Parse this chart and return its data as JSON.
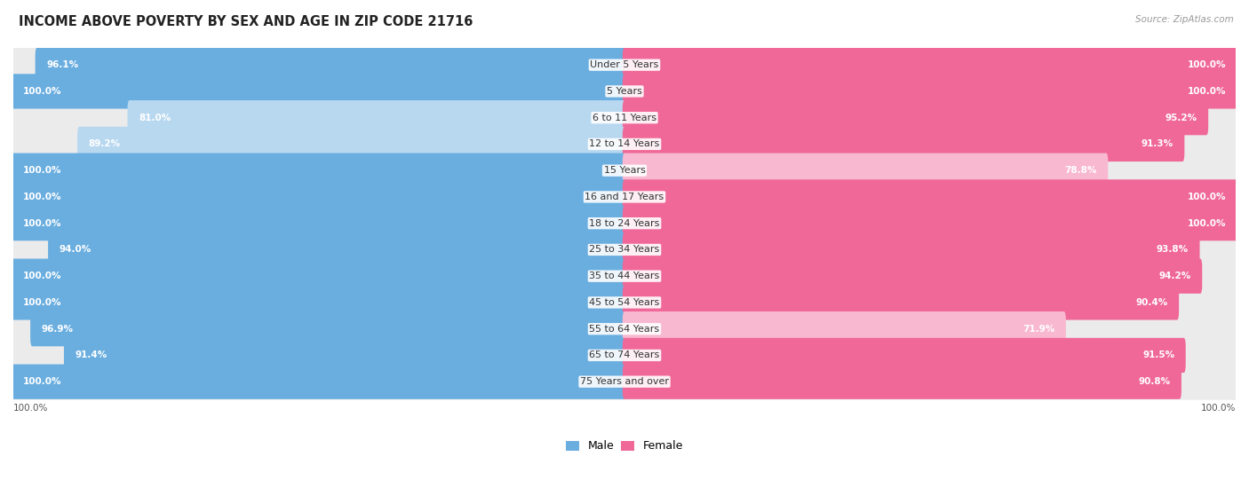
{
  "title": "INCOME ABOVE POVERTY BY SEX AND AGE IN ZIP CODE 21716",
  "source": "Source: ZipAtlas.com",
  "categories": [
    "Under 5 Years",
    "5 Years",
    "6 to 11 Years",
    "12 to 14 Years",
    "15 Years",
    "16 and 17 Years",
    "18 to 24 Years",
    "25 to 34 Years",
    "35 to 44 Years",
    "45 to 54 Years",
    "55 to 64 Years",
    "65 to 74 Years",
    "75 Years and over"
  ],
  "male_values": [
    96.1,
    100.0,
    81.0,
    89.2,
    100.0,
    100.0,
    100.0,
    94.0,
    100.0,
    100.0,
    96.9,
    91.4,
    100.0
  ],
  "female_values": [
    100.0,
    100.0,
    95.2,
    91.3,
    78.8,
    100.0,
    100.0,
    93.8,
    94.2,
    90.4,
    71.9,
    91.5,
    90.8
  ],
  "male_color": "#6aaee0",
  "male_color_light": "#b8d8f0",
  "female_color": "#f06898",
  "female_color_light": "#f8b8d0",
  "bg_color": "#ffffff",
  "row_bg_color": "#ebebeb",
  "max_value": 100.0,
  "title_fontsize": 10.5,
  "label_fontsize": 8,
  "value_fontsize": 7.5,
  "legend_fontsize": 9,
  "source_fontsize": 7.5
}
